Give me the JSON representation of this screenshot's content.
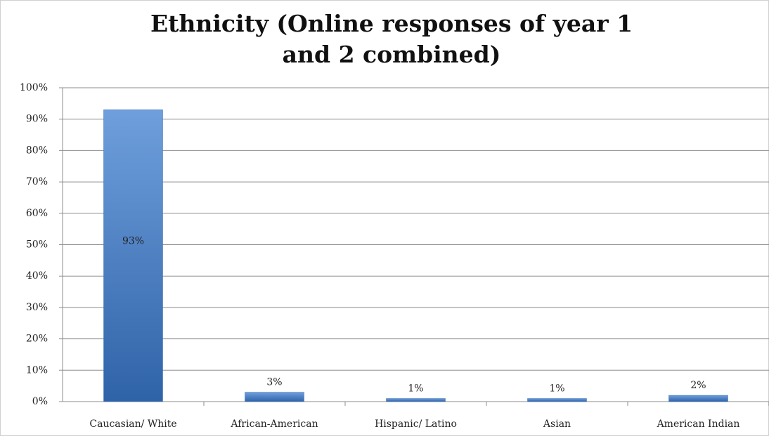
{
  "chart_data": {
    "type": "bar",
    "title": "Ethnicity (Online responses of year 1 and 2 combined)",
    "categories": [
      "Caucasian/ White",
      "African-American",
      "Hispanic/ Latino",
      "Asian",
      "American Indian"
    ],
    "values": [
      93,
      3,
      1,
      1,
      2
    ],
    "value_labels": [
      "93%",
      "3%",
      "1%",
      "1%",
      "2%"
    ],
    "color": "#4f81bd",
    "ylim": [
      0,
      100
    ],
    "yticks": [
      {
        "value": 0,
        "label": "0%"
      },
      {
        "value": 10,
        "label": "10%"
      },
      {
        "value": 20,
        "label": "20%"
      },
      {
        "value": 30,
        "label": "30%"
      },
      {
        "value": 40,
        "label": "40%"
      },
      {
        "value": 50,
        "label": "50%"
      },
      {
        "value": 60,
        "label": "60%"
      },
      {
        "value": 70,
        "label": "70%"
      },
      {
        "value": 80,
        "label": "80%"
      },
      {
        "value": 90,
        "label": "90%"
      },
      {
        "value": 100,
        "label": "100%"
      }
    ],
    "grid": true
  }
}
